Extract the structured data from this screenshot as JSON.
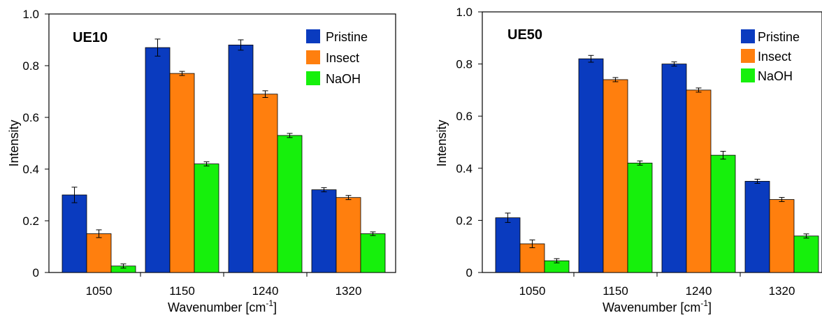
{
  "chart_data": [
    {
      "type": "bar",
      "title": "UE10",
      "xlabel": "Wavenumber [cm",
      "xlabel_sup": "-1",
      "xlabel_end": "]",
      "ylabel": "Intensity",
      "ylim": [
        0,
        1.0
      ],
      "yticks": [
        "0",
        "0.2",
        "0.4",
        "0.6",
        "0.8",
        "1.0"
      ],
      "categories": [
        "1050",
        "1150",
        "1240",
        "1320"
      ],
      "legend_position": "top-right",
      "series": [
        {
          "name": "Pristine",
          "color": "#0a3bbf",
          "values": [
            0.3,
            0.87,
            0.88,
            0.32
          ],
          "errors": [
            0.03,
            0.033,
            0.02,
            0.008
          ]
        },
        {
          "name": "Insect",
          "color": "#ff7f0e",
          "values": [
            0.15,
            0.77,
            0.69,
            0.29
          ],
          "errors": [
            0.015,
            0.008,
            0.013,
            0.008
          ]
        },
        {
          "name": "NaOH",
          "color": "#16f00c",
          "values": [
            0.025,
            0.42,
            0.53,
            0.15
          ],
          "errors": [
            0.008,
            0.008,
            0.008,
            0.007
          ]
        }
      ]
    },
    {
      "type": "bar",
      "title": "UE50",
      "xlabel": "Wavenumber [cm",
      "xlabel_sup": "-1",
      "xlabel_end": "]",
      "ylabel": "Intensity",
      "ylim": [
        0,
        1.0
      ],
      "yticks": [
        "0",
        "0.2",
        "0.4",
        "0.6",
        "0.8",
        "1.0"
      ],
      "categories": [
        "1050",
        "1150",
        "1240",
        "1320"
      ],
      "legend_position": "top-right",
      "series": [
        {
          "name": "Pristine",
          "color": "#0a3bbf",
          "values": [
            0.21,
            0.82,
            0.8,
            0.35
          ],
          "errors": [
            0.018,
            0.013,
            0.008,
            0.008
          ]
        },
        {
          "name": "Insect",
          "color": "#ff7f0e",
          "values": [
            0.11,
            0.74,
            0.7,
            0.28
          ],
          "errors": [
            0.015,
            0.008,
            0.008,
            0.008
          ]
        },
        {
          "name": "NaOH",
          "color": "#16f00c",
          "values": [
            0.045,
            0.42,
            0.45,
            0.14
          ],
          "errors": [
            0.008,
            0.008,
            0.015,
            0.008
          ]
        }
      ]
    }
  ]
}
